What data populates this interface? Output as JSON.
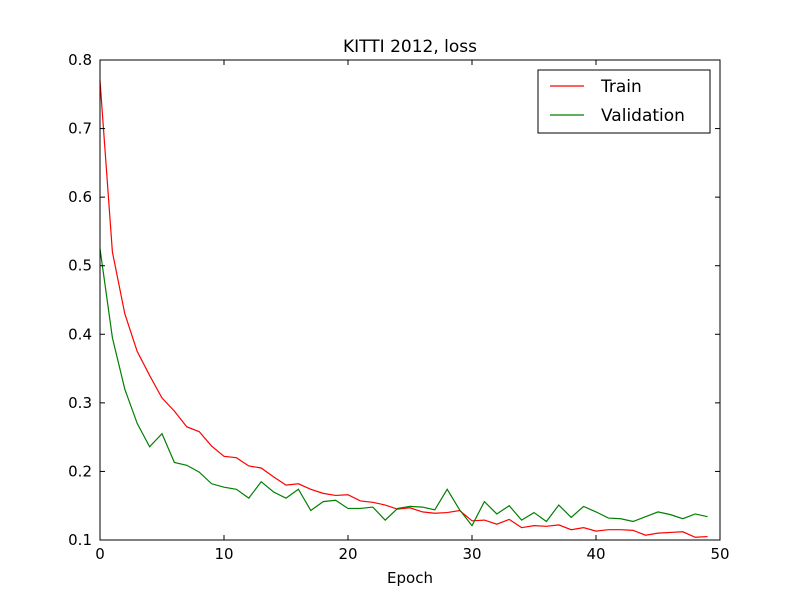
{
  "chart_data": {
    "type": "line",
    "title": "KITTI 2012, loss",
    "xlabel": "Epoch",
    "ylabel": "",
    "xlim": [
      0,
      50
    ],
    "ylim": [
      0.1,
      0.8
    ],
    "xticks": [
      0,
      10,
      20,
      30,
      40,
      50
    ],
    "yticks": [
      0.1,
      0.2,
      0.3,
      0.4,
      0.5,
      0.6,
      0.7,
      0.8
    ],
    "grid": false,
    "legend_position": "top-right",
    "x": [
      0,
      1,
      2,
      3,
      4,
      5,
      6,
      7,
      8,
      9,
      10,
      11,
      12,
      13,
      14,
      15,
      16,
      17,
      18,
      19,
      20,
      21,
      22,
      23,
      24,
      25,
      26,
      27,
      28,
      29,
      30,
      31,
      32,
      33,
      34,
      35,
      36,
      37,
      38,
      39,
      40,
      41,
      42,
      43,
      44,
      45,
      46,
      47,
      48,
      49
    ],
    "series": [
      {
        "name": "Train",
        "color": "#ff0000",
        "values": [
          0.77,
          0.52,
          0.43,
          0.375,
          0.34,
          0.307,
          0.288,
          0.265,
          0.258,
          0.237,
          0.222,
          0.22,
          0.208,
          0.205,
          0.192,
          0.18,
          0.182,
          0.174,
          0.168,
          0.165,
          0.166,
          0.157,
          0.155,
          0.151,
          0.145,
          0.147,
          0.141,
          0.139,
          0.14,
          0.143,
          0.128,
          0.129,
          0.123,
          0.13,
          0.118,
          0.121,
          0.12,
          0.122,
          0.115,
          0.118,
          0.113,
          0.115,
          0.115,
          0.114,
          0.107,
          0.11,
          0.111,
          0.112,
          0.104,
          0.105
        ]
      },
      {
        "name": "Validation",
        "color": "#008000",
        "values": [
          0.525,
          0.395,
          0.32,
          0.27,
          0.236,
          0.255,
          0.213,
          0.209,
          0.199,
          0.182,
          0.177,
          0.174,
          0.161,
          0.185,
          0.17,
          0.161,
          0.174,
          0.143,
          0.156,
          0.158,
          0.146,
          0.146,
          0.148,
          0.129,
          0.146,
          0.149,
          0.148,
          0.144,
          0.174,
          0.144,
          0.121,
          0.156,
          0.138,
          0.15,
          0.129,
          0.14,
          0.127,
          0.151,
          0.133,
          0.149,
          0.141,
          0.132,
          0.131,
          0.127,
          0.134,
          0.141,
          0.137,
          0.131,
          0.138,
          0.134
        ]
      }
    ]
  }
}
